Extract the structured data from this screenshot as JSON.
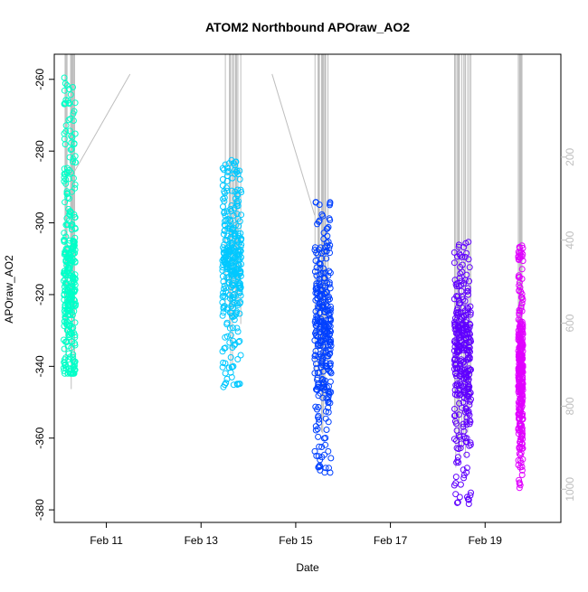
{
  "chart_data": {
    "type": "scatter",
    "title": "ATOM2 Northbound APOraw_AO2",
    "xlabel": "Date",
    "ylabel": "APOraw_AO2",
    "x_ticks": [
      {
        "value": 11,
        "label": "Feb 11"
      },
      {
        "value": 13,
        "label": "Feb 13"
      },
      {
        "value": 15,
        "label": "Feb 15"
      },
      {
        "value": 17,
        "label": "Feb 17"
      },
      {
        "value": 19,
        "label": "Feb 19"
      }
    ],
    "xlim": [
      9.9,
      20.6
    ],
    "ylim": [
      -383.5,
      -253
    ],
    "y_ticks": [
      -260,
      -280,
      -300,
      -320,
      -340,
      -360,
      -380
    ],
    "y2_ticks": [
      200,
      400,
      600,
      800,
      1000
    ],
    "y2lim": [
      -47.8,
      1080
    ],
    "y2_reversed": true,
    "right_axis_color": "#bebebe",
    "depth_line_color": "#bebebe",
    "grid": false,
    "series": [
      {
        "color": "#00FFC8",
        "x_range": [
          10.1,
          10.35
        ],
        "y_range": [
          -342,
          -258
        ],
        "y_center": -320
      },
      {
        "color": "#00C8FF",
        "x_range": [
          13.45,
          13.85
        ],
        "y_range": [
          -346,
          -282
        ],
        "y_center": -312
      },
      {
        "color": "#0040FF",
        "x_range": [
          15.4,
          15.75
        ],
        "y_range": [
          -370,
          -294
        ],
        "y_center": -328
      },
      {
        "color": "#6000FF",
        "x_range": [
          18.35,
          18.7
        ],
        "y_range": [
          -379,
          -305
        ],
        "y_center": -335
      },
      {
        "color": "#E000FF",
        "x_range": [
          19.7,
          19.8
        ],
        "y_range": [
          -374,
          -306
        ],
        "y_center": -342
      }
    ],
    "depth_profiles": [
      {
        "x_range": [
          10.1,
          10.35
        ],
        "y2_max": 760
      },
      {
        "x_range": [
          13.45,
          13.85
        ],
        "y2_max": 740
      },
      {
        "x_range": [
          15.4,
          15.75
        ],
        "y2_max": 880
      },
      {
        "x_range": [
          18.35,
          18.7
        ],
        "y2_max": 970
      },
      {
        "x_range": [
          19.7,
          19.8
        ],
        "y2_max": 900
      }
    ],
    "transects": [
      {
        "x": [
          10.3,
          11.5
        ],
        "y2": [
          240,
          0
        ]
      },
      {
        "x": [
          14.5,
          15.4
        ],
        "y2": [
          0,
          340
        ]
      }
    ]
  }
}
